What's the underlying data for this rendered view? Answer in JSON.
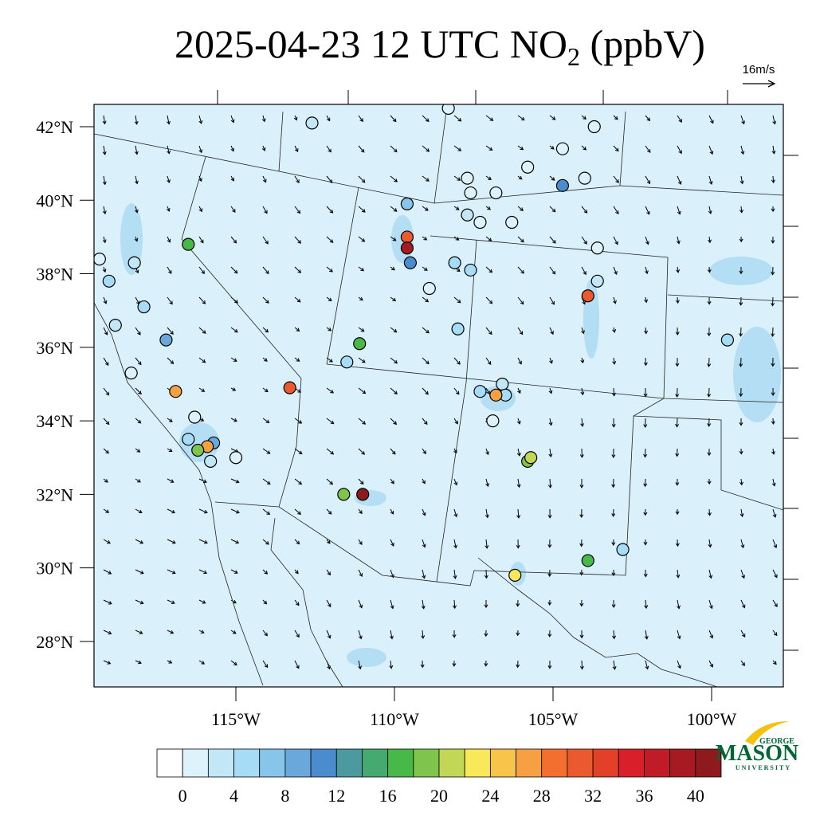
{
  "map": {
    "title": {
      "main": "2025-04-23 12 UTC NO",
      "subscript": "2",
      "tail": " (ppbV)"
    },
    "wind_key": "16m/s",
    "lat_ticks": [
      {
        "value": 42,
        "label": "42°N"
      },
      {
        "value": 40,
        "label": "40°N"
      },
      {
        "value": 38,
        "label": "38°N"
      },
      {
        "value": 36,
        "label": "36°N"
      },
      {
        "value": 34,
        "label": "34°N"
      },
      {
        "value": 32,
        "label": "32°N"
      },
      {
        "value": 30,
        "label": "30°N"
      },
      {
        "value": 28,
        "label": "28°N"
      }
    ],
    "lon_ticks": [
      {
        "value": -115,
        "label": "115°W"
      },
      {
        "value": -110,
        "label": "110°W"
      },
      {
        "value": -105,
        "label": "105°W"
      },
      {
        "value": -100,
        "label": "100°W"
      }
    ],
    "colorbar": {
      "range": [
        -2,
        42
      ],
      "ticks": [
        0,
        4,
        8,
        12,
        16,
        20,
        24,
        28,
        32,
        36,
        40
      ],
      "colors": [
        "#ffffff",
        "#def2fb",
        "#c2e8f8",
        "#a6dcf5",
        "#88c5eb",
        "#6aa8dc",
        "#4a8ccd",
        "#4a9aa0",
        "#45aa6f",
        "#48b848",
        "#7fc44c",
        "#c2d756",
        "#f8e85a",
        "#f8c44a",
        "#f7a043",
        "#f36f30",
        "#eb5a2e",
        "#e3402a",
        "#d91f2a",
        "#c01b26",
        "#a81a22",
        "#8e1a1e"
      ]
    },
    "stations": [
      {
        "lon": -112.6,
        "lat": 42.1,
        "value": 3
      },
      {
        "lon": -116.5,
        "lat": 38.8,
        "value": 17
      },
      {
        "lon": -119.3,
        "lat": 38.4,
        "value": 1
      },
      {
        "lon": -119.0,
        "lat": 37.8,
        "value": 4
      },
      {
        "lon": -118.2,
        "lat": 38.3,
        "value": 3
      },
      {
        "lon": -117.9,
        "lat": 37.1,
        "value": 4
      },
      {
        "lon": -118.8,
        "lat": 36.6,
        "value": 3
      },
      {
        "lon": -117.2,
        "lat": 36.2,
        "value": 9
      },
      {
        "lon": -118.3,
        "lat": 35.3,
        "value": 0
      },
      {
        "lon": -116.9,
        "lat": 34.8,
        "value": 26
      },
      {
        "lon": -116.3,
        "lat": 34.1,
        "value": 1
      },
      {
        "lon": -116.5,
        "lat": 33.5,
        "value": 5
      },
      {
        "lon": -115.7,
        "lat": 33.4,
        "value": 8
      },
      {
        "lon": -115.9,
        "lat": 33.3,
        "value": 28
      },
      {
        "lon": -116.2,
        "lat": 33.2,
        "value": 19
      },
      {
        "lon": -115.8,
        "lat": 32.9,
        "value": 2
      },
      {
        "lon": -115.0,
        "lat": 33.0,
        "value": 1
      },
      {
        "lon": -113.3,
        "lat": 34.9,
        "value": 31
      },
      {
        "lon": -111.5,
        "lat": 35.6,
        "value": 4
      },
      {
        "lon": -111.1,
        "lat": 36.1,
        "value": 17
      },
      {
        "lon": -111.6,
        "lat": 32.0,
        "value": 19
      },
      {
        "lon": -111.0,
        "lat": 32.0,
        "value": 40
      },
      {
        "lon": -109.6,
        "lat": 39.9,
        "value": 7
      },
      {
        "lon": -109.5,
        "lat": 38.3,
        "value": 10
      },
      {
        "lon": -109.6,
        "lat": 39.0,
        "value": 30
      },
      {
        "lon": -109.6,
        "lat": 38.7,
        "value": 38
      },
      {
        "lon": -108.9,
        "lat": 37.6,
        "value": 1
      },
      {
        "lon": -108.0,
        "lat": 36.5,
        "value": 5
      },
      {
        "lon": -108.1,
        "lat": 38.3,
        "value": 4
      },
      {
        "lon": -107.6,
        "lat": 38.1,
        "value": 4
      },
      {
        "lon": -107.7,
        "lat": 39.6,
        "value": 2
      },
      {
        "lon": -107.3,
        "lat": 39.4,
        "value": 1
      },
      {
        "lon": -107.7,
        "lat": 40.6,
        "value": 1
      },
      {
        "lon": -107.6,
        "lat": 40.2,
        "value": 1
      },
      {
        "lon": -106.8,
        "lat": 40.2,
        "value": 0
      },
      {
        "lon": -106.3,
        "lat": 39.4,
        "value": 0
      },
      {
        "lon": -105.8,
        "lat": 40.9,
        "value": 0
      },
      {
        "lon": -104.7,
        "lat": 41.4,
        "value": 0
      },
      {
        "lon": -103.7,
        "lat": 42.0,
        "value": 0
      },
      {
        "lon": -104.0,
        "lat": 40.6,
        "value": 1
      },
      {
        "lon": -104.7,
        "lat": 40.4,
        "value": 11
      },
      {
        "lon": -103.6,
        "lat": 38.7,
        "value": 1
      },
      {
        "lon": -103.6,
        "lat": 37.8,
        "value": 2
      },
      {
        "lon": -103.9,
        "lat": 37.4,
        "value": 31
      },
      {
        "lon": -106.9,
        "lat": 34.0,
        "value": 1
      },
      {
        "lon": -107.3,
        "lat": 34.8,
        "value": 4
      },
      {
        "lon": -106.6,
        "lat": 35.0,
        "value": 3
      },
      {
        "lon": -106.5,
        "lat": 34.7,
        "value": 4
      },
      {
        "lon": -106.8,
        "lat": 34.7,
        "value": 28
      },
      {
        "lon": -105.8,
        "lat": 32.9,
        "value": 19
      },
      {
        "lon": -105.7,
        "lat": 33.0,
        "value": 21
      },
      {
        "lon": -106.2,
        "lat": 29.8,
        "value": 22
      },
      {
        "lon": -103.9,
        "lat": 30.2,
        "value": 17
      },
      {
        "lon": -102.8,
        "lat": 30.5,
        "value": 5
      },
      {
        "lon": -99.5,
        "lat": 36.2,
        "value": 4
      },
      {
        "lon": -108.3,
        "lat": 42.5,
        "value": 0
      }
    ],
    "logo": {
      "top": "GEORGE",
      "main": "MASON",
      "bottom": "UNIVERSITY"
    }
  }
}
